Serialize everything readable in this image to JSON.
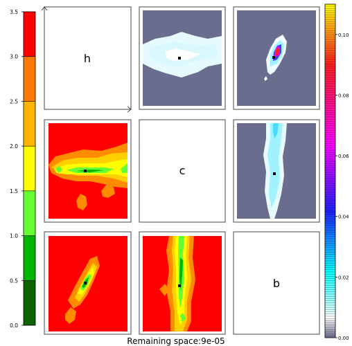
{
  "footer": {
    "prefix": "Remaining space:",
    "value": "9e-05"
  },
  "chart_data": {
    "type": "heatmap",
    "title": "",
    "layout": "3x3 corner/pair plot of parameters h, c, b",
    "diagonal_labels": [
      "h",
      "c",
      "b"
    ],
    "left_colorbar": {
      "range": [
        0.0,
        3.5
      ],
      "ticks": [
        "0.0",
        "0.5",
        "1.0",
        "1.5",
        "2.0",
        "2.5",
        "3.0",
        "3.5"
      ],
      "bands": [
        {
          "from": 0.0,
          "to": 0.5,
          "color": "#0a6400"
        },
        {
          "from": 0.5,
          "to": 1.0,
          "color": "#00b400"
        },
        {
          "from": 1.0,
          "to": 1.5,
          "color": "#66ff33"
        },
        {
          "from": 1.5,
          "to": 2.0,
          "color": "#ffff00"
        },
        {
          "from": 2.0,
          "to": 2.5,
          "color": "#ffb400"
        },
        {
          "from": 2.5,
          "to": 3.0,
          "color": "#ff7800"
        },
        {
          "from": 3.0,
          "to": 3.5,
          "color": "#ff0000"
        }
      ]
    },
    "right_colorbar": {
      "range": [
        0.0,
        0.11
      ],
      "ticks": [
        "0.00",
        "0.02",
        "0.04",
        "0.06",
        "0.08",
        "0.10"
      ],
      "colors": [
        "#6b6d8e",
        "#ffffff",
        "#00ffff",
        "#2020ff",
        "#ff00ff",
        "#ff2020",
        "#ffff00"
      ]
    },
    "panels": [
      {
        "row": 1,
        "col": 2,
        "pair": "h-c",
        "scale": "right",
        "marker": [
          0.49,
          0.5
        ]
      },
      {
        "row": 1,
        "col": 3,
        "pair": "h-b",
        "scale": "right",
        "marker": [
          0.47,
          0.52
        ]
      },
      {
        "row": 2,
        "col": 1,
        "pair": "c-h",
        "scale": "left",
        "marker": [
          0.48,
          0.5
        ]
      },
      {
        "row": 2,
        "col": 3,
        "pair": "c-b",
        "scale": "right",
        "marker": [
          0.51,
          0.52
        ]
      },
      {
        "row": 3,
        "col": 1,
        "pair": "b-h",
        "scale": "left",
        "marker": [
          0.5,
          0.46
        ]
      },
      {
        "row": 3,
        "col": 2,
        "pair": "b-c",
        "scale": "left",
        "marker": [
          0.48,
          0.53
        ]
      }
    ]
  }
}
